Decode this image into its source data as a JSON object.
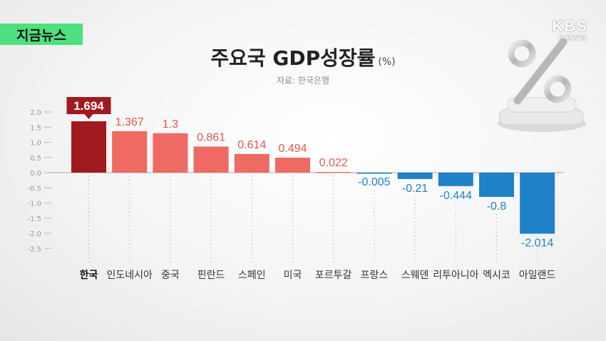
{
  "header": {
    "tag_label": "지금뉴스",
    "brand_line1": "KBS",
    "brand_line2": "NEWS",
    "title": "주요국 GDP성장률",
    "unit": "(%)",
    "source": "자료: 한국은행"
  },
  "colors": {
    "highlight": "#a11a1f",
    "positive": "#ee6a62",
    "positive_label": "#e0594f",
    "negative": "#1f82c9",
    "negative_label": "#1f82c9"
  },
  "chart_data": {
    "type": "bar",
    "title": "주요국 GDP성장률",
    "ylabel": "(%)",
    "xlabel": "",
    "categories": [
      "한국",
      "인도네시아",
      "중국",
      "핀란드",
      "스페인",
      "미국",
      "포르투갈",
      "프랑스",
      "스웨덴",
      "리투아니아",
      "멕시코",
      "아일랜드"
    ],
    "values": [
      1.694,
      1.367,
      1.3,
      0.861,
      0.614,
      0.494,
      0.022,
      -0.005,
      -0.21,
      -0.444,
      -0.8,
      -2.014
    ],
    "value_labels": [
      "1.694",
      "1.367",
      "1.3",
      "0.861",
      "0.614",
      "0.494",
      "0.022",
      "-0.005",
      "-0.21",
      "-0.444",
      "-0.8",
      "-2.014"
    ],
    "yticks": [
      2.0,
      1.5,
      1.0,
      0.5,
      0.0,
      -0.5,
      -1.0,
      -1.5,
      -2.0,
      -2.5
    ],
    "ytick_labels": [
      "2.0",
      "1.5",
      "1.0",
      "0.5",
      "0.0",
      "-0.5",
      "-1.0",
      "-1.5",
      "-2.0",
      "-2.5"
    ],
    "ylim": [
      -2.5,
      2.0
    ],
    "highlight_index": 0,
    "grid": false,
    "legend": "none"
  }
}
